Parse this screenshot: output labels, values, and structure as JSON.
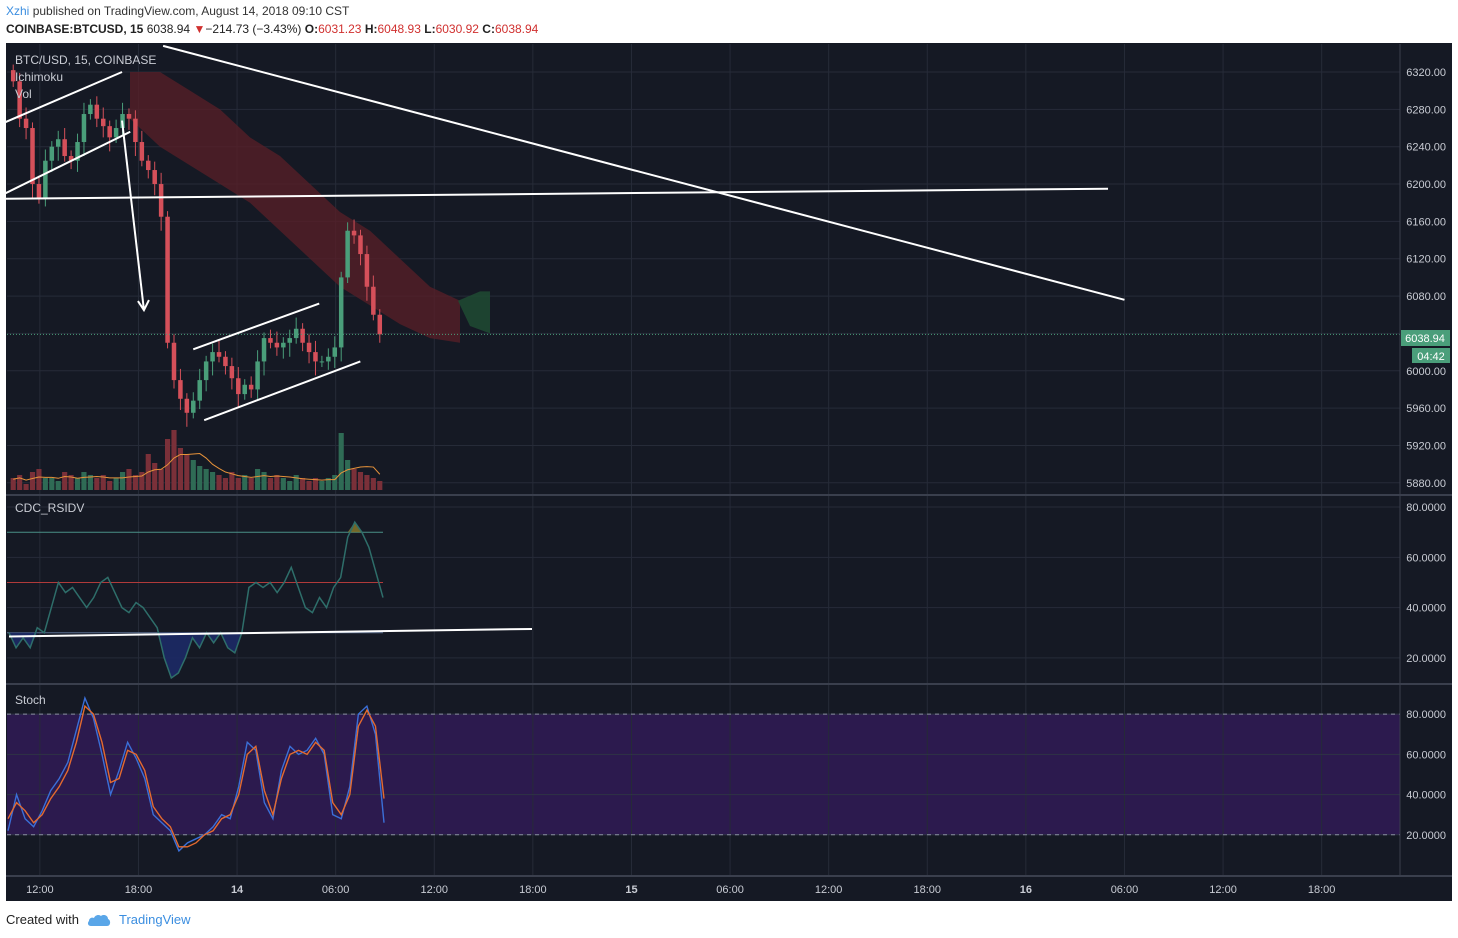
{
  "header": {
    "author": "Xzhi",
    "published_text": "published on TradingView.com, August 14, 2018 09:10 CST",
    "symbol": "COINBASE:BTCUSD, 15",
    "last": "6038.94",
    "change_arrow": "▼",
    "change": "−214.73 (−3.43%)",
    "o_label": "O:",
    "o_value": "6031.23",
    "h_label": "H:",
    "h_value": "6048.93",
    "l_label": "L:",
    "l_value": "6030.92",
    "c_label": "C:",
    "c_value": "6038.94"
  },
  "panels": {
    "main_title": "BTC/USD, 15, COINBASE",
    "indicator_1": "Ichimoku",
    "indicator_2": "Vol",
    "rsi_title": "CDC_RSIDV",
    "stoch_title": "Stoch"
  },
  "price_badge": {
    "price": "6038.94",
    "countdown": "04:42"
  },
  "footer": {
    "created_with": "Created with",
    "brand": "TradingView"
  },
  "colors": {
    "background": "#151924",
    "up": "#4a9e7a",
    "down": "#d5505a",
    "grid": "#262b38",
    "stoch_band": "#2c1a4e",
    "price_badge": "#4a9e7a"
  },
  "chart_data": [
    {
      "type": "candlestick",
      "title": "BTC/USD, 15, COINBASE",
      "x_labels": [
        "12:00",
        "18:00",
        "14",
        "06:00",
        "12:00",
        "18:00",
        "15",
        "06:00",
        "12:00",
        "18:00",
        "16",
        "06:00",
        "12:00",
        "18:00"
      ],
      "y_ticks": [
        5880,
        5920,
        5960,
        6000,
        6040,
        6080,
        6120,
        6160,
        6200,
        6240,
        6280,
        6320
      ],
      "y_tick_labels": [
        "5880.00",
        "5920.00",
        "5960.00",
        "6000.00",
        "6040.00",
        "6080.00",
        "6120.00",
        "6160.00",
        "6200.00",
        "6240.00",
        "6280.00",
        "6320.00"
      ],
      "ylim": [
        5868,
        6350
      ],
      "last_price": 6038.94,
      "close_path": [
        6310,
        6270,
        6260,
        6200,
        6185,
        6225,
        6240,
        6248,
        6230,
        6225,
        6245,
        6275,
        6285,
        6270,
        6262,
        6250,
        6260,
        6275,
        6270,
        6245,
        6225,
        6215,
        6200,
        6165,
        6030,
        5990,
        5970,
        5955,
        5968,
        5990,
        6010,
        6020,
        6015,
        6005,
        5992,
        5975,
        5985,
        5980,
        6010,
        6035,
        6030,
        6025,
        6030,
        6035,
        6045,
        6030,
        6020,
        6010,
        6010,
        6015,
        6025,
        6100,
        6150,
        6145,
        6125,
        6090,
        6060,
        6039
      ],
      "trendlines": [
        {
          "from": [
            "09:20",
            6262
          ],
          "to": [
            "17:00",
            6320
          ]
        },
        {
          "from": [
            "09:40",
            6188
          ],
          "to": [
            "17:30",
            6256
          ]
        },
        {
          "from": [
            "08:40",
            6184
          ],
          "to": [
            "Aug 16 05:00",
            6195
          ]
        },
        {
          "from": [
            "Aug 13 19:30",
            6348
          ],
          "to": [
            "Aug 16 06:00",
            6076
          ]
        },
        {
          "from": [
            "Aug 13 21:20",
            6023
          ],
          "to": [
            "Aug 14 05:00",
            6072
          ]
        },
        {
          "from": [
            "Aug 13 22:00",
            5947
          ],
          "to": [
            "Aug 14 07:30",
            6010
          ]
        }
      ],
      "arrows": [
        {
          "from": [
            "17:00",
            6268
          ],
          "to": [
            "18:20",
            6065
          ]
        }
      ]
    },
    {
      "type": "bar",
      "title": "Vol",
      "volume_relative": [
        0.2,
        0.25,
        0.1,
        0.3,
        0.35,
        0.2,
        0.2,
        0.15,
        0.3,
        0.25,
        0.2,
        0.3,
        0.25,
        0.2,
        0.25,
        0.15,
        0.2,
        0.3,
        0.35,
        0.25,
        0.3,
        0.6,
        0.45,
        0.35,
        0.85,
        1.0,
        0.7,
        0.6,
        0.5,
        0.4,
        0.35,
        0.3,
        0.25,
        0.2,
        0.3,
        0.2,
        0.25,
        0.2,
        0.35,
        0.3,
        0.2,
        0.25,
        0.2,
        0.15,
        0.25,
        0.2,
        0.15,
        0.2,
        0.15,
        0.2,
        0.25,
        0.95,
        0.5,
        0.35,
        0.3,
        0.25,
        0.2,
        0.15
      ]
    },
    {
      "type": "line",
      "title": "CDC_RSIDV",
      "y_tick_labels": [
        "20.0000",
        "40.0000",
        "60.0000",
        "80.0000"
      ],
      "ylim": [
        10,
        84
      ],
      "levels": [
        70,
        50,
        30
      ],
      "values": [
        30,
        24,
        28,
        24,
        32,
        30,
        40,
        50,
        46,
        48,
        44,
        40,
        44,
        50,
        52,
        46,
        40,
        38,
        42,
        40,
        36,
        32,
        20,
        12,
        14,
        20,
        28,
        24,
        30,
        26,
        30,
        24,
        22,
        30,
        48,
        50,
        48,
        50,
        46,
        50,
        56,
        48,
        40,
        38,
        44,
        40,
        48,
        52,
        68,
        74,
        70,
        64,
        54,
        44
      ]
    },
    {
      "type": "line",
      "title": "Stoch",
      "y_tick_labels": [
        "20.0000",
        "40.0000",
        "60.0000",
        "80.0000"
      ],
      "ylim": [
        0,
        94
      ],
      "levels": [
        80,
        20
      ],
      "series": [
        {
          "color": "#3b6fd8",
          "values": [
            22,
            40,
            28,
            24,
            32,
            42,
            48,
            56,
            72,
            88,
            78,
            60,
            40,
            52,
            66,
            58,
            48,
            30,
            26,
            22,
            12,
            16,
            18,
            20,
            24,
            30,
            28,
            44,
            66,
            62,
            36,
            28,
            52,
            64,
            60,
            62,
            68,
            60,
            30,
            28,
            44,
            80,
            84,
            70,
            26
          ]
        },
        {
          "color": "#e46a2f",
          "values": [
            28,
            36,
            32,
            26,
            30,
            38,
            44,
            52,
            66,
            84,
            80,
            66,
            46,
            48,
            62,
            60,
            52,
            34,
            28,
            24,
            14,
            14,
            16,
            20,
            22,
            28,
            30,
            40,
            60,
            64,
            42,
            30,
            48,
            60,
            62,
            60,
            66,
            62,
            36,
            30,
            40,
            74,
            82,
            74,
            38
          ]
        }
      ]
    }
  ]
}
